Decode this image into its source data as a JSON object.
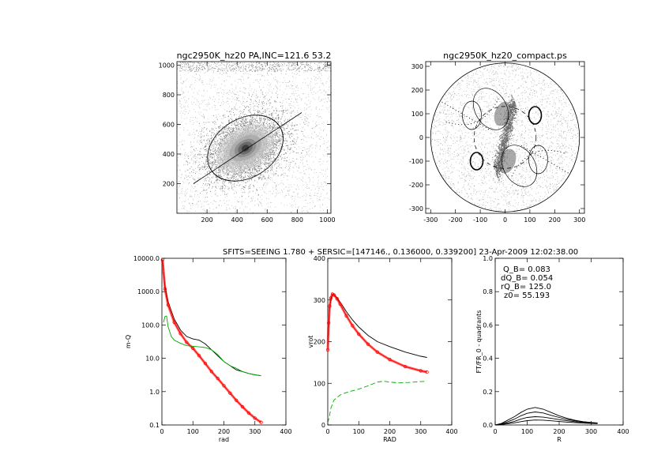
{
  "figure": {
    "subtitle": "SFITS=SEEING 1.780 + SERSIC=[147146., 0.136000, 0.339200]  23-Apr-2009 12:02:38.00"
  },
  "colors": {
    "axis": "#000000",
    "black_curve": "#000000",
    "red_curve": "#ff0000",
    "green_curve": "#00aa00",
    "image_gray": "#9a9a9a"
  },
  "chart_data": [
    {
      "id": "image",
      "type": "scatter",
      "title": "ngc2950K_hz20 PA,INC=121.6 53.2",
      "xlim": [
        0,
        1024
      ],
      "ylim": [
        0,
        1024
      ],
      "xticks": [
        200,
        400,
        600,
        800,
        1000
      ],
      "yticks": [
        200,
        400,
        600,
        800,
        1000
      ],
      "center": [
        455,
        440
      ],
      "ellipse": {
        "a": 270,
        "b": 195,
        "angle_deg": 32
      },
      "pa_line": {
        "from": [
          110,
          200
        ],
        "to": [
          830,
          680
        ]
      }
    },
    {
      "id": "compact",
      "type": "scatter",
      "title": "ngc2950K_hz20_compact.ps",
      "xlim": [
        -320,
        320
      ],
      "ylim": [
        -320,
        320
      ],
      "xticks": [
        -300,
        -200,
        -100,
        0,
        100,
        200,
        300
      ],
      "yticks": [
        -300,
        -200,
        -100,
        0,
        100,
        200,
        300
      ],
      "outer_radius": 300,
      "dashed_radius": 125
    },
    {
      "id": "profile",
      "type": "line",
      "xlabel": "rad",
      "ylabel": "m-Q",
      "xlim": [
        0,
        400
      ],
      "ylim": [
        0.1,
        10000
      ],
      "yscale": "log",
      "xticks": [
        0,
        100,
        200,
        300,
        400
      ],
      "yticks": [
        0.1,
        1,
        10,
        100,
        1000,
        10000
      ],
      "ytick_labels": [
        "0.1",
        "1.0",
        "10.0",
        "100.0",
        "1000.0",
        "10000.0"
      ],
      "series": [
        {
          "color": "black",
          "x": [
            2,
            10,
            20,
            40,
            60,
            80,
            100,
            120,
            140,
            160,
            180,
            200,
            220,
            240,
            260,
            280,
            300,
            320
          ],
          "y": [
            8000,
            1500,
            500,
            150,
            70,
            45,
            38,
            35,
            27,
            18,
            12,
            8,
            6,
            4.5,
            4,
            3.5,
            3.2,
            3.0
          ]
        },
        {
          "color": "red",
          "x": [
            2,
            10,
            20,
            40,
            60,
            80,
            100,
            120,
            140,
            160,
            180,
            200,
            220,
            240,
            260,
            280,
            300,
            320
          ],
          "y": [
            9000,
            1200,
            400,
            120,
            55,
            30,
            20,
            12,
            7,
            4,
            2.5,
            1.5,
            0.9,
            0.55,
            0.35,
            0.23,
            0.16,
            0.12
          ]
        },
        {
          "color": "green",
          "x": [
            5,
            10,
            15,
            20,
            30,
            40,
            60,
            80,
            100,
            120,
            140,
            160,
            180,
            200,
            220,
            240,
            260,
            280,
            300,
            320
          ],
          "y": [
            120,
            180,
            185,
            90,
            45,
            35,
            28,
            24,
            23,
            22,
            21,
            18,
            13,
            8,
            6,
            5,
            4,
            3.5,
            3.2,
            3.0
          ]
        }
      ]
    },
    {
      "id": "rotation",
      "type": "line",
      "xlabel": "RAD",
      "ylabel": "vrot",
      "xlim": [
        0,
        400
      ],
      "ylim": [
        0,
        400
      ],
      "xticks": [
        0,
        100,
        200,
        300,
        400
      ],
      "yticks": [
        0,
        100,
        200,
        300,
        400
      ],
      "series": [
        {
          "color": "black",
          "x": [
            0,
            3,
            6,
            10,
            15,
            20,
            30,
            40,
            60,
            80,
            100,
            130,
            160,
            200,
            250,
            300,
            320
          ],
          "y": [
            180,
            240,
            280,
            300,
            312,
            313,
            305,
            295,
            272,
            252,
            235,
            215,
            200,
            188,
            175,
            165,
            162
          ]
        },
        {
          "color": "red",
          "x": [
            0,
            3,
            6,
            10,
            15,
            20,
            30,
            40,
            60,
            80,
            100,
            130,
            160,
            200,
            250,
            300,
            320
          ],
          "y": [
            180,
            245,
            285,
            305,
            314,
            312,
            303,
            290,
            262,
            238,
            218,
            194,
            175,
            157,
            140,
            130,
            127
          ]
        },
        {
          "color": "green",
          "x": [
            0,
            5,
            10,
            20,
            40,
            60,
            80,
            100,
            130,
            160,
            180,
            200,
            230,
            260,
            300,
            320
          ],
          "y": [
            5,
            20,
            40,
            60,
            72,
            78,
            82,
            86,
            94,
            103,
            105,
            103,
            101,
            102,
            104,
            105
          ]
        }
      ]
    },
    {
      "id": "fourier",
      "type": "line",
      "xlabel": "R",
      "ylabel": "FT/FR_0 - quadrants",
      "xlim": [
        0,
        400
      ],
      "ylim": [
        0,
        1.0
      ],
      "xticks": [
        0,
        100,
        200,
        300,
        400
      ],
      "yticks": [
        0.0,
        0.2,
        0.4,
        0.6,
        0.8,
        1.0
      ],
      "ytick_labels": [
        "0.0",
        "0.2",
        "0.4",
        "0.6",
        "0.8",
        "1.0"
      ],
      "annotations": [
        "Q_B=  0.083",
        "dQ_B=  0.054",
        "rQ_B=  125.0",
        "z0= 55.193"
      ],
      "series": [
        {
          "color": "black",
          "x": [
            0,
            20,
            40,
            60,
            80,
            100,
            125,
            150,
            175,
            200,
            225,
            250,
            275,
            300,
            320
          ],
          "y": [
            0.0,
            0.01,
            0.03,
            0.05,
            0.075,
            0.095,
            0.105,
            0.095,
            0.075,
            0.055,
            0.04,
            0.028,
            0.02,
            0.015,
            0.012
          ]
        },
        {
          "color": "black",
          "x": [
            0,
            20,
            40,
            60,
            80,
            100,
            125,
            150,
            175,
            200,
            225,
            250,
            275,
            300,
            320
          ],
          "y": [
            0.0,
            0.008,
            0.02,
            0.035,
            0.055,
            0.07,
            0.078,
            0.072,
            0.058,
            0.045,
            0.033,
            0.025,
            0.019,
            0.014,
            0.011
          ]
        },
        {
          "color": "black",
          "x": [
            0,
            20,
            40,
            60,
            80,
            100,
            125,
            150,
            175,
            200,
            225,
            250,
            275,
            300,
            320
          ],
          "y": [
            0.0,
            0.005,
            0.012,
            0.022,
            0.035,
            0.045,
            0.05,
            0.047,
            0.04,
            0.032,
            0.025,
            0.02,
            0.015,
            0.012,
            0.01
          ]
        },
        {
          "color": "black",
          "x": [
            0,
            20,
            40,
            60,
            80,
            100,
            125,
            150,
            175,
            200,
            225,
            250,
            275,
            300,
            320
          ],
          "y": [
            0.0,
            0.003,
            0.008,
            0.013,
            0.02,
            0.026,
            0.03,
            0.029,
            0.025,
            0.021,
            0.017,
            0.014,
            0.011,
            0.009,
            0.008
          ]
        }
      ]
    }
  ]
}
